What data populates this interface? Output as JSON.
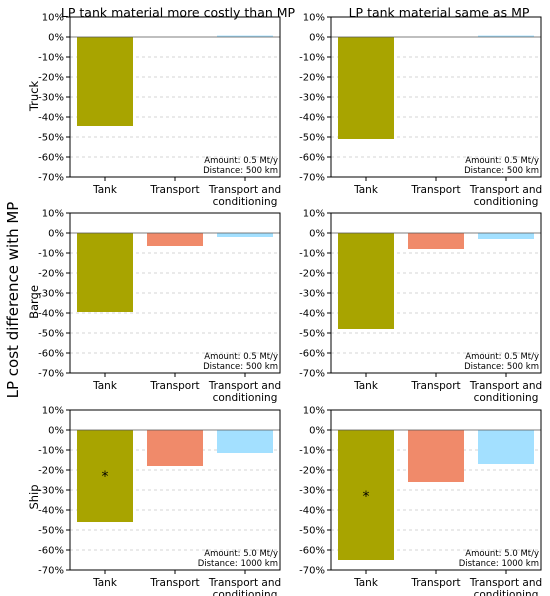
{
  "figure": {
    "ylabel": "LP cost difference with MP",
    "col_titles": [
      "LP tank material more costly than MP",
      "LP tank material same as MP"
    ],
    "row_labels": [
      "Truck",
      "Barge",
      "Ship"
    ],
    "categories": [
      "Tank",
      "Transport",
      "Transport and\nconditioning"
    ],
    "yticks": [
      "10%",
      "0%",
      "-10%",
      "-20%",
      "-30%",
      "-40%",
      "-50%",
      "-60%",
      "-70%"
    ],
    "colors": {
      "Tank": "#a8a400",
      "Transport": "#f08a6a",
      "Transport and conditioning": "#a3e0ff"
    }
  },
  "chart_data": [
    {
      "type": "bar",
      "row": "Truck",
      "column": "LP tank material more costly than MP",
      "categories": [
        "Tank",
        "Transport",
        "Transport and conditioning"
      ],
      "values": [
        -44.5,
        0,
        0.7
      ],
      "ylim": [
        -70,
        10
      ],
      "annotation": [
        "Amount: 0.5 Mt/y",
        "Distance: 500 km"
      ],
      "marker": null
    },
    {
      "type": "bar",
      "row": "Truck",
      "column": "LP tank material same as MP",
      "categories": [
        "Tank",
        "Transport",
        "Transport and conditioning"
      ],
      "values": [
        -51,
        0,
        0.7
      ],
      "ylim": [
        -70,
        10
      ],
      "annotation": [
        "Amount: 0.5 Mt/y",
        "Distance: 500 km"
      ],
      "marker": null
    },
    {
      "type": "bar",
      "row": "Barge",
      "column": "LP tank material more costly than MP",
      "categories": [
        "Tank",
        "Transport",
        "Transport and conditioning"
      ],
      "values": [
        -39.5,
        -6.5,
        -2
      ],
      "ylim": [
        -70,
        10
      ],
      "annotation": [
        "Amount: 0.5 Mt/y",
        "Distance: 500 km"
      ],
      "marker": null
    },
    {
      "type": "bar",
      "row": "Barge",
      "column": "LP tank material same as MP",
      "categories": [
        "Tank",
        "Transport",
        "Transport and conditioning"
      ],
      "values": [
        -48,
        -8,
        -3
      ],
      "ylim": [
        -70,
        10
      ],
      "annotation": [
        "Amount: 0.5 Mt/y",
        "Distance: 500 km"
      ],
      "marker": null
    },
    {
      "type": "bar",
      "row": "Ship",
      "column": "LP tank material more costly than MP",
      "categories": [
        "Tank",
        "Transport",
        "Transport and conditioning"
      ],
      "values": [
        -46,
        -18,
        -11.5
      ],
      "ylim": [
        -70,
        10
      ],
      "annotation": [
        "Amount: 5.0 Mt/y",
        "Distance: 1000 km"
      ],
      "marker": {
        "text": "*",
        "category": "Tank",
        "y": -22
      }
    },
    {
      "type": "bar",
      "row": "Ship",
      "column": "LP tank material same as MP",
      "categories": [
        "Tank",
        "Transport",
        "Transport and conditioning"
      ],
      "values": [
        -65,
        -26,
        -17
      ],
      "ylim": [
        -70,
        10
      ],
      "annotation": [
        "Amount: 5.0 Mt/y",
        "Distance: 1000 km"
      ],
      "marker": {
        "text": "*",
        "category": "Tank",
        "y": -32
      }
    }
  ]
}
